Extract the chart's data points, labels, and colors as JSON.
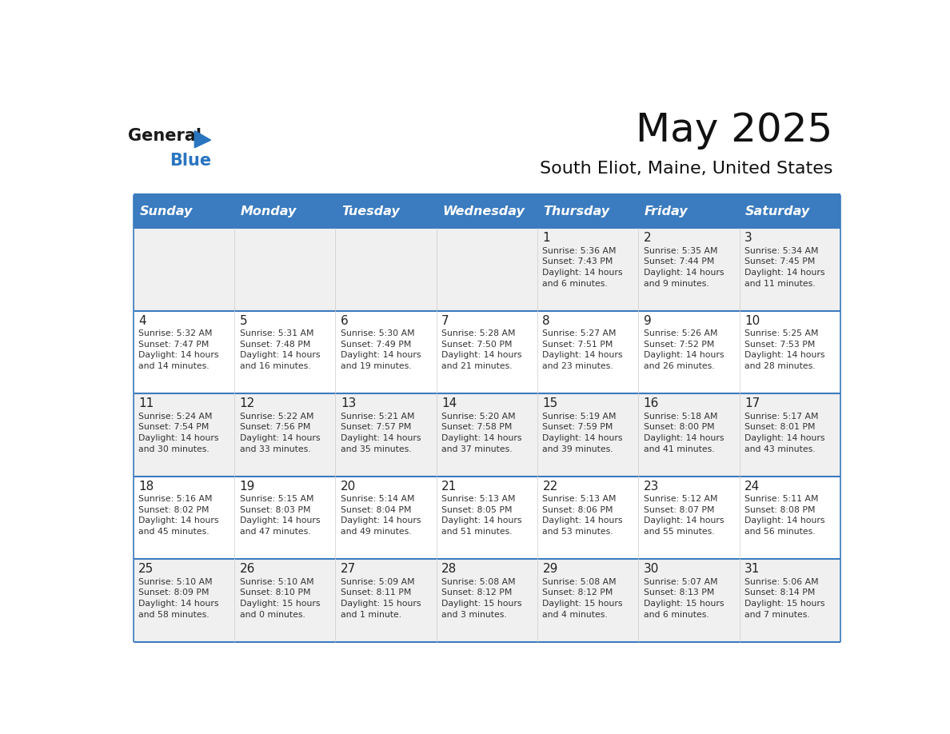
{
  "title": "May 2025",
  "subtitle": "South Eliot, Maine, United States",
  "header_bg_color": "#3b7bbf",
  "header_text_color": "#ffffff",
  "row_bg_even": "#f0f0f0",
  "row_bg_odd": "#ffffff",
  "separator_color": "#3b7bbf",
  "text_color": "#333333",
  "days_of_week": [
    "Sunday",
    "Monday",
    "Tuesday",
    "Wednesday",
    "Thursday",
    "Friday",
    "Saturday"
  ],
  "calendar": [
    [
      {
        "day": "",
        "info": ""
      },
      {
        "day": "",
        "info": ""
      },
      {
        "day": "",
        "info": ""
      },
      {
        "day": "",
        "info": ""
      },
      {
        "day": "1",
        "info": "Sunrise: 5:36 AM\nSunset: 7:43 PM\nDaylight: 14 hours\nand 6 minutes."
      },
      {
        "day": "2",
        "info": "Sunrise: 5:35 AM\nSunset: 7:44 PM\nDaylight: 14 hours\nand 9 minutes."
      },
      {
        "day": "3",
        "info": "Sunrise: 5:34 AM\nSunset: 7:45 PM\nDaylight: 14 hours\nand 11 minutes."
      }
    ],
    [
      {
        "day": "4",
        "info": "Sunrise: 5:32 AM\nSunset: 7:47 PM\nDaylight: 14 hours\nand 14 minutes."
      },
      {
        "day": "5",
        "info": "Sunrise: 5:31 AM\nSunset: 7:48 PM\nDaylight: 14 hours\nand 16 minutes."
      },
      {
        "day": "6",
        "info": "Sunrise: 5:30 AM\nSunset: 7:49 PM\nDaylight: 14 hours\nand 19 minutes."
      },
      {
        "day": "7",
        "info": "Sunrise: 5:28 AM\nSunset: 7:50 PM\nDaylight: 14 hours\nand 21 minutes."
      },
      {
        "day": "8",
        "info": "Sunrise: 5:27 AM\nSunset: 7:51 PM\nDaylight: 14 hours\nand 23 minutes."
      },
      {
        "day": "9",
        "info": "Sunrise: 5:26 AM\nSunset: 7:52 PM\nDaylight: 14 hours\nand 26 minutes."
      },
      {
        "day": "10",
        "info": "Sunrise: 5:25 AM\nSunset: 7:53 PM\nDaylight: 14 hours\nand 28 minutes."
      }
    ],
    [
      {
        "day": "11",
        "info": "Sunrise: 5:24 AM\nSunset: 7:54 PM\nDaylight: 14 hours\nand 30 minutes."
      },
      {
        "day": "12",
        "info": "Sunrise: 5:22 AM\nSunset: 7:56 PM\nDaylight: 14 hours\nand 33 minutes."
      },
      {
        "day": "13",
        "info": "Sunrise: 5:21 AM\nSunset: 7:57 PM\nDaylight: 14 hours\nand 35 minutes."
      },
      {
        "day": "14",
        "info": "Sunrise: 5:20 AM\nSunset: 7:58 PM\nDaylight: 14 hours\nand 37 minutes."
      },
      {
        "day": "15",
        "info": "Sunrise: 5:19 AM\nSunset: 7:59 PM\nDaylight: 14 hours\nand 39 minutes."
      },
      {
        "day": "16",
        "info": "Sunrise: 5:18 AM\nSunset: 8:00 PM\nDaylight: 14 hours\nand 41 minutes."
      },
      {
        "day": "17",
        "info": "Sunrise: 5:17 AM\nSunset: 8:01 PM\nDaylight: 14 hours\nand 43 minutes."
      }
    ],
    [
      {
        "day": "18",
        "info": "Sunrise: 5:16 AM\nSunset: 8:02 PM\nDaylight: 14 hours\nand 45 minutes."
      },
      {
        "day": "19",
        "info": "Sunrise: 5:15 AM\nSunset: 8:03 PM\nDaylight: 14 hours\nand 47 minutes."
      },
      {
        "day": "20",
        "info": "Sunrise: 5:14 AM\nSunset: 8:04 PM\nDaylight: 14 hours\nand 49 minutes."
      },
      {
        "day": "21",
        "info": "Sunrise: 5:13 AM\nSunset: 8:05 PM\nDaylight: 14 hours\nand 51 minutes."
      },
      {
        "day": "22",
        "info": "Sunrise: 5:13 AM\nSunset: 8:06 PM\nDaylight: 14 hours\nand 53 minutes."
      },
      {
        "day": "23",
        "info": "Sunrise: 5:12 AM\nSunset: 8:07 PM\nDaylight: 14 hours\nand 55 minutes."
      },
      {
        "day": "24",
        "info": "Sunrise: 5:11 AM\nSunset: 8:08 PM\nDaylight: 14 hours\nand 56 minutes."
      }
    ],
    [
      {
        "day": "25",
        "info": "Sunrise: 5:10 AM\nSunset: 8:09 PM\nDaylight: 14 hours\nand 58 minutes."
      },
      {
        "day": "26",
        "info": "Sunrise: 5:10 AM\nSunset: 8:10 PM\nDaylight: 15 hours\nand 0 minutes."
      },
      {
        "day": "27",
        "info": "Sunrise: 5:09 AM\nSunset: 8:11 PM\nDaylight: 15 hours\nand 1 minute."
      },
      {
        "day": "28",
        "info": "Sunrise: 5:08 AM\nSunset: 8:12 PM\nDaylight: 15 hours\nand 3 minutes."
      },
      {
        "day": "29",
        "info": "Sunrise: 5:08 AM\nSunset: 8:12 PM\nDaylight: 15 hours\nand 4 minutes."
      },
      {
        "day": "30",
        "info": "Sunrise: 5:07 AM\nSunset: 8:13 PM\nDaylight: 15 hours\nand 6 minutes."
      },
      {
        "day": "31",
        "info": "Sunrise: 5:06 AM\nSunset: 8:14 PM\nDaylight: 15 hours\nand 7 minutes."
      }
    ]
  ],
  "logo_general_color": "#1a1a1a",
  "logo_blue_color": "#2a75c0",
  "logo_triangle_color": "#2a75c0"
}
